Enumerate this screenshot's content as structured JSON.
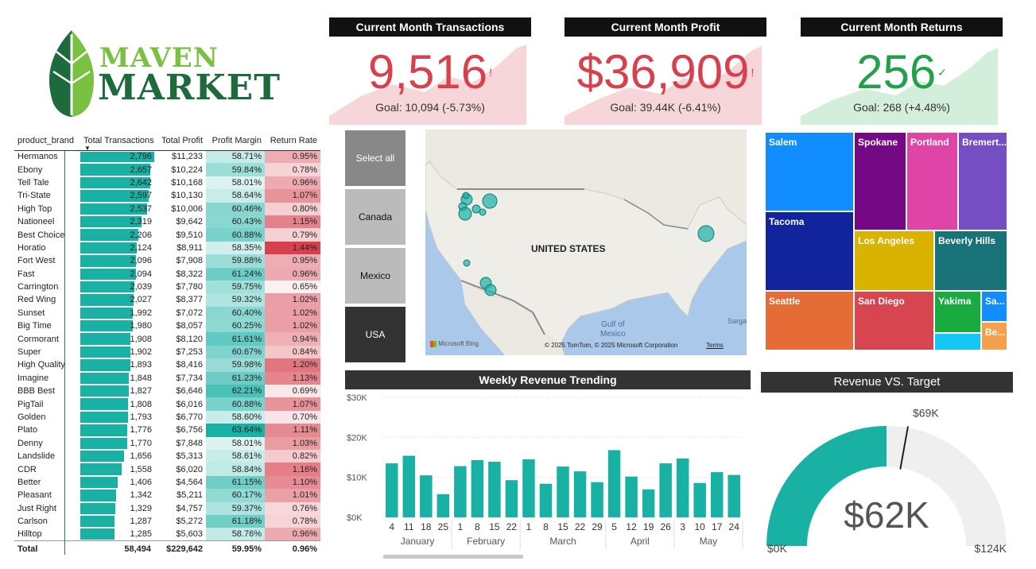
{
  "logo": {
    "word1": "MAVEN",
    "word2": "MARKET",
    "colors": {
      "leaf_dark": "#1d6a3c",
      "leaf_light": "#7ac143"
    }
  },
  "kpis": [
    {
      "title": "Current Month Transactions",
      "value": "9,516",
      "flag": "!",
      "goal": "Goal: 10,094 (-5.73%)",
      "color": "#d7414e",
      "bg": "#f6d6d9"
    },
    {
      "title": "Current Month Profit",
      "value": "$36,909",
      "flag": "!",
      "goal": "Goal: 39.44K (-6.41%)",
      "color": "#d7414e",
      "bg": "#f6d6d9"
    },
    {
      "title": "Current Month Returns",
      "value": "256",
      "flag": "✓",
      "goal": "Goal: 268 (+4.48%)",
      "color": "#23a04b",
      "bg": "#d3efdb"
    }
  ],
  "table": {
    "headers": [
      "product_brand",
      "Total Transactions",
      "Total Profit",
      "Profit Margin",
      "Return Rate"
    ],
    "rows": [
      [
        "Hermanos",
        "2,796",
        "$11,233",
        "58.71%",
        "0.95%"
      ],
      [
        "Ebony",
        "2,657",
        "$10,224",
        "59.84%",
        "0.78%"
      ],
      [
        "Tell Tale",
        "2,642",
        "$10,168",
        "58.01%",
        "0.96%"
      ],
      [
        "Tri-State",
        "2,597",
        "$10,130",
        "58.64%",
        "1.07%"
      ],
      [
        "High Top",
        "2,537",
        "$10,006",
        "60.46%",
        "0.80%"
      ],
      [
        "Nationeel",
        "2,319",
        "$9,642",
        "60.43%",
        "1.15%"
      ],
      [
        "Best Choice",
        "2,206",
        "$9,510",
        "60.88%",
        "0.79%"
      ],
      [
        "Horatio",
        "2,124",
        "$8,911",
        "58.35%",
        "1.44%"
      ],
      [
        "Fort West",
        "2,096",
        "$7,908",
        "59.88%",
        "0.95%"
      ],
      [
        "Fast",
        "2,094",
        "$8,322",
        "61.24%",
        "0.96%"
      ],
      [
        "Carrington",
        "2,039",
        "$7,780",
        "59.75%",
        "0.65%"
      ],
      [
        "Red Wing",
        "2,027",
        "$8,377",
        "59.32%",
        "1.02%"
      ],
      [
        "Sunset",
        "1,992",
        "$7,072",
        "60.40%",
        "1.02%"
      ],
      [
        "Big Time",
        "1,980",
        "$8,057",
        "60.25%",
        "1.02%"
      ],
      [
        "Cormorant",
        "1,908",
        "$8,120",
        "61.61%",
        "0.94%"
      ],
      [
        "Super",
        "1,902",
        "$7,253",
        "60.67%",
        "0.84%"
      ],
      [
        "High Quality",
        "1,893",
        "$8,416",
        "59.98%",
        "1.20%"
      ],
      [
        "Imagine",
        "1,848",
        "$7,734",
        "61.23%",
        "1.13%"
      ],
      [
        "BBB Best",
        "1,827",
        "$6,646",
        "62.21%",
        "0.69%"
      ],
      [
        "PigTail",
        "1,808",
        "$6,016",
        "60.88%",
        "1.07%"
      ],
      [
        "Golden",
        "1,793",
        "$6,770",
        "58.60%",
        "0.70%"
      ],
      [
        "Plato",
        "1,776",
        "$6,756",
        "63.64%",
        "1.11%"
      ],
      [
        "Denny",
        "1,770",
        "$7,848",
        "58.01%",
        "1.03%"
      ],
      [
        "Landslide",
        "1,656",
        "$5,313",
        "58.61%",
        "0.82%"
      ],
      [
        "CDR",
        "1,558",
        "$6,020",
        "58.84%",
        "1.16%"
      ],
      [
        "Better",
        "1,406",
        "$4,564",
        "61.15%",
        "1.10%"
      ],
      [
        "Pleasant",
        "1,342",
        "$5,211",
        "60.17%",
        "1.01%"
      ],
      [
        "Just Right",
        "1,329",
        "$4,757",
        "59.37%",
        "0.76%"
      ],
      [
        "Carlson",
        "1,287",
        "$5,272",
        "61.18%",
        "0.78%"
      ],
      [
        "Hilltop",
        "1,285",
        "$5,603",
        "58.76%",
        "0.96%"
      ]
    ],
    "total": [
      "Total",
      "58,494",
      "$229,642",
      "59.95%",
      "0.96%"
    ],
    "colors": {
      "bar": "#1ab1a5",
      "margin": "#1ab1a5",
      "return": "#d7414e"
    }
  },
  "slicer": {
    "items": [
      "Select all",
      "Canada",
      "Mexico",
      "USA"
    ]
  },
  "map": {
    "country_label": "UNITED STATES",
    "gulf_label": "Gulf of\nMexico",
    "sea_label": "Sarga",
    "bing": "Microsoft Bing",
    "copyright": "© 2025 TomTom, © 2025 Microsoft Corporation",
    "terms": "Terms"
  },
  "treemap": {
    "cells": [
      {
        "label": "Salem",
        "color": "#118dff"
      },
      {
        "label": "Spokane",
        "color": "#750985"
      },
      {
        "label": "Portland",
        "color": "#e044a7"
      },
      {
        "label": "Bremert...",
        "color": "#744ec2"
      },
      {
        "label": "Tacoma",
        "color": "#12239e"
      },
      {
        "label": "Los Angeles",
        "color": "#d9b300"
      },
      {
        "label": "Beverly Hills",
        "color": "#197278"
      },
      {
        "label": "Seattle",
        "color": "#e66c37"
      },
      {
        "label": "San Diego",
        "color": "#d64550"
      },
      {
        "label": "Yakima",
        "color": "#1aab40"
      },
      {
        "label": "Sa...",
        "color": "#15c6f4"
      },
      {
        "label": "",
        "color": "#15c6f4"
      },
      {
        "label": "Be...",
        "color": "#f5a04d"
      }
    ]
  },
  "weekly": {
    "title": "Weekly Revenue Trending",
    "y_ticks": [
      "$30K",
      "$20K",
      "$10K",
      "$0K"
    ],
    "months": [
      "January",
      "February",
      "March",
      "April",
      "May"
    ],
    "chart_data": {
      "type": "bar",
      "categories": [
        "4",
        "11",
        "18",
        "25",
        "1",
        "8",
        "15",
        "22",
        "1",
        "8",
        "15",
        "22",
        "29",
        "5",
        "12",
        "19",
        "26",
        "3",
        "10",
        "17",
        "24"
      ],
      "values": [
        13.5,
        15.4,
        10.5,
        5.8,
        12.8,
        14.3,
        13.9,
        9.3,
        14.5,
        8.4,
        12.7,
        11.5,
        8.8,
        16.8,
        10.2,
        7.0,
        13.5,
        14.7,
        8.6,
        11.3,
        10.6
      ],
      "ylim": [
        0,
        30
      ],
      "ylabel": "",
      "color": "#1ab1a5"
    }
  },
  "gauge": {
    "title": "Revenue VS. Target",
    "value_label": "$62K",
    "min_label": "$0K",
    "max_label": "$124K",
    "target_label": "$69K",
    "chart_data": {
      "type": "gauge",
      "value": 62,
      "target": 69,
      "min": 0,
      "max": 124
    },
    "colors": {
      "fill": "#1ab1a5",
      "track": "#efefef"
    }
  }
}
